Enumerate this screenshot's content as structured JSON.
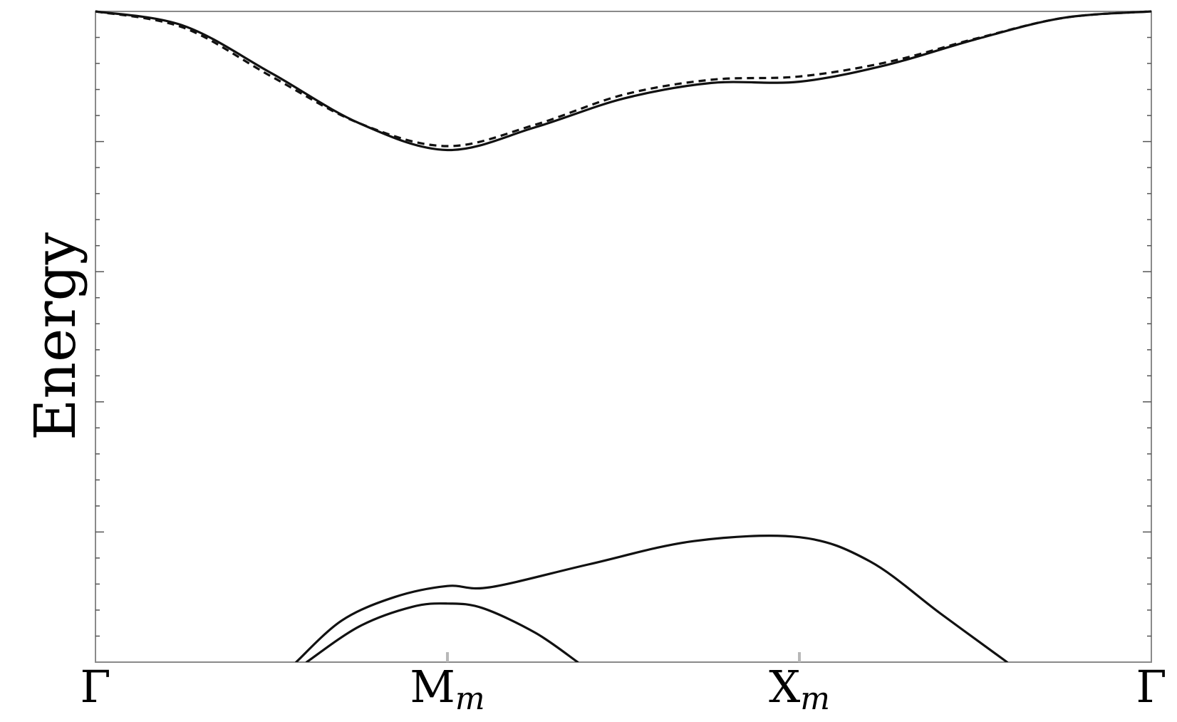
{
  "chart_data": {
    "type": "line",
    "title": "",
    "ylabel": "Energy",
    "xlabel": "",
    "x_ticks": [
      {
        "main": "Γ",
        "sub": "",
        "position": 0
      },
      {
        "main": "M",
        "sub": "m",
        "position": 1
      },
      {
        "main": "X",
        "sub": "m",
        "position": 2
      },
      {
        "main": "Γ",
        "sub": "",
        "position": 3
      }
    ],
    "xlim": [
      0,
      3
    ],
    "ylim": [
      0,
      1
    ],
    "grid": false,
    "y_tick_count": 25,
    "series": [
      {
        "style": "solid",
        "x": [
          0,
          0.25,
          0.5,
          0.75,
          1.0,
          1.25,
          1.5,
          1.75,
          2.0,
          2.25,
          2.5,
          2.75,
          3.0
        ],
        "y": [
          1.0,
          0.978,
          0.905,
          0.828,
          0.787,
          0.822,
          0.866,
          0.89,
          0.892,
          0.918,
          0.957,
          0.99,
          1.0
        ]
      },
      {
        "style": "dashed",
        "x": [
          0,
          0.25,
          0.5,
          0.75,
          1.0,
          1.25,
          1.5,
          1.75,
          2.0,
          2.25,
          2.5,
          2.75,
          3.0
        ],
        "y": [
          1.0,
          0.975,
          0.9,
          0.828,
          0.793,
          0.826,
          0.872,
          0.895,
          0.9,
          0.922,
          0.958,
          0.99,
          1.0
        ]
      },
      {
        "style": "solid",
        "x": [
          0.57,
          0.7,
          0.85,
          1.0,
          1.12,
          1.4,
          1.7,
          2.0,
          2.2,
          2.4,
          2.59
        ],
        "y": [
          0.0,
          0.064,
          0.1,
          0.117,
          0.115,
          0.15,
          0.186,
          0.192,
          0.155,
          0.075,
          0.0
        ]
      },
      {
        "style": "solid",
        "x": [
          0.6,
          0.75,
          0.9,
          1.0,
          1.1,
          1.25,
          1.37
        ],
        "y": [
          0.0,
          0.055,
          0.085,
          0.09,
          0.083,
          0.045,
          0.0
        ]
      }
    ]
  }
}
